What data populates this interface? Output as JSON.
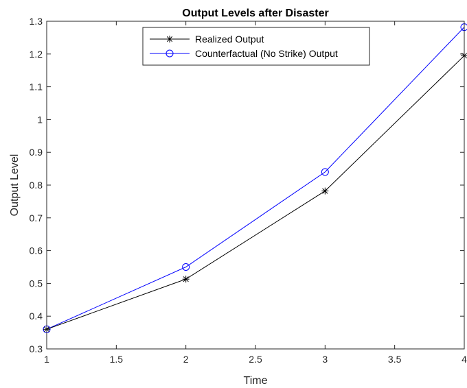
{
  "chart_data": {
    "type": "line",
    "title": "Output Levels after Disaster",
    "xlabel": "Time",
    "ylabel": "Output Level",
    "xlim": [
      1,
      4
    ],
    "ylim": [
      0.3,
      1.3
    ],
    "xticks": [
      1,
      1.5,
      2,
      2.5,
      3,
      3.5,
      4
    ],
    "xtick_labels": [
      "1",
      "1.5",
      "2",
      "2.5",
      "3",
      "3.5",
      "4"
    ],
    "yticks": [
      0.3,
      0.4,
      0.5,
      0.6,
      0.7,
      0.8,
      0.9,
      1.0,
      1.1,
      1.2,
      1.3
    ],
    "ytick_labels": [
      "0.3",
      "0.4",
      "0.5",
      "0.6",
      "0.7",
      "0.8",
      "0.9",
      "1",
      "1.1",
      "1.2",
      "1.3"
    ],
    "grid": false,
    "legend_position": "top-center",
    "x": [
      1,
      2,
      3,
      4
    ],
    "series": [
      {
        "name": "Realized Output",
        "values": [
          0.36,
          0.513,
          0.782,
          1.195
        ],
        "color": "#000000",
        "marker": "asterisk"
      },
      {
        "name": "Counterfactual (No Strike) Output",
        "values": [
          0.36,
          0.55,
          0.84,
          1.282
        ],
        "color": "#0000ff",
        "marker": "circle"
      }
    ]
  }
}
